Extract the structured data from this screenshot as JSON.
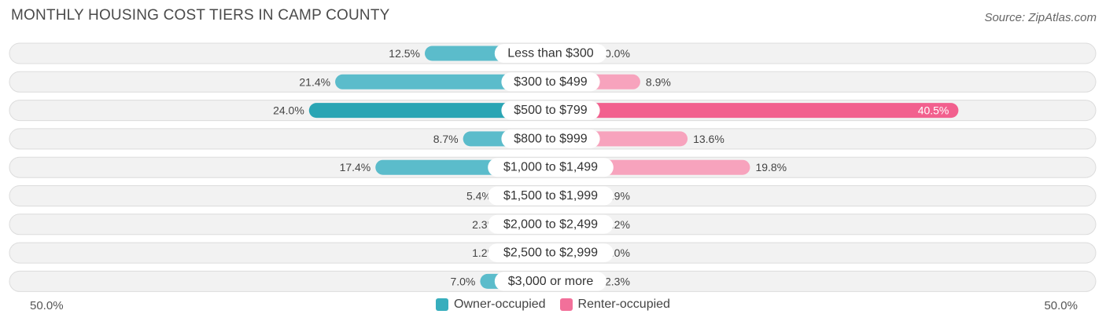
{
  "title": "MONTHLY HOUSING COST TIERS IN CAMP COUNTY",
  "source": "Source: ZipAtlas.com",
  "axis": {
    "left_label": "50.0%",
    "right_label": "50.0%"
  },
  "colors": {
    "owner": "#5bbccb",
    "owner_dark": "#2aa5b4",
    "renter": "#f7a3bd",
    "renter_dark": "#f2608e",
    "row_bg": "#f2f2f2",
    "row_border": "#dcdcdc"
  },
  "legend": [
    {
      "label": "Owner-occupied",
      "color": "#37aebd"
    },
    {
      "label": "Renter-occupied",
      "color": "#f2709a"
    }
  ],
  "chart_data": {
    "type": "bar",
    "orientation": "diverging-horizontal",
    "xlim": [
      -50,
      50
    ],
    "categories": [
      "Less than $300",
      "$300 to $499",
      "$500 to $799",
      "$800 to $999",
      "$1,000 to $1,499",
      "$1,500 to $1,999",
      "$2,000 to $2,499",
      "$2,500 to $2,999",
      "$3,000 or more"
    ],
    "series": [
      {
        "name": "Owner-occupied",
        "values": [
          12.5,
          21.4,
          24.0,
          8.7,
          17.4,
          5.4,
          2.3,
          1.2,
          7.0
        ],
        "labels": [
          "12.5%",
          "21.4%",
          "24.0%",
          "8.7%",
          "17.4%",
          "5.4%",
          "2.3%",
          "1.2%",
          "7.0%"
        ]
      },
      {
        "name": "Renter-occupied",
        "values": [
          0.0,
          8.9,
          40.5,
          13.6,
          19.8,
          1.9,
          2.2,
          0.0,
          2.3
        ],
        "labels": [
          "0.0%",
          "8.9%",
          "40.5%",
          "13.6%",
          "19.8%",
          "1.9%",
          "2.2%",
          "0.0%",
          "2.3%"
        ]
      }
    ]
  }
}
